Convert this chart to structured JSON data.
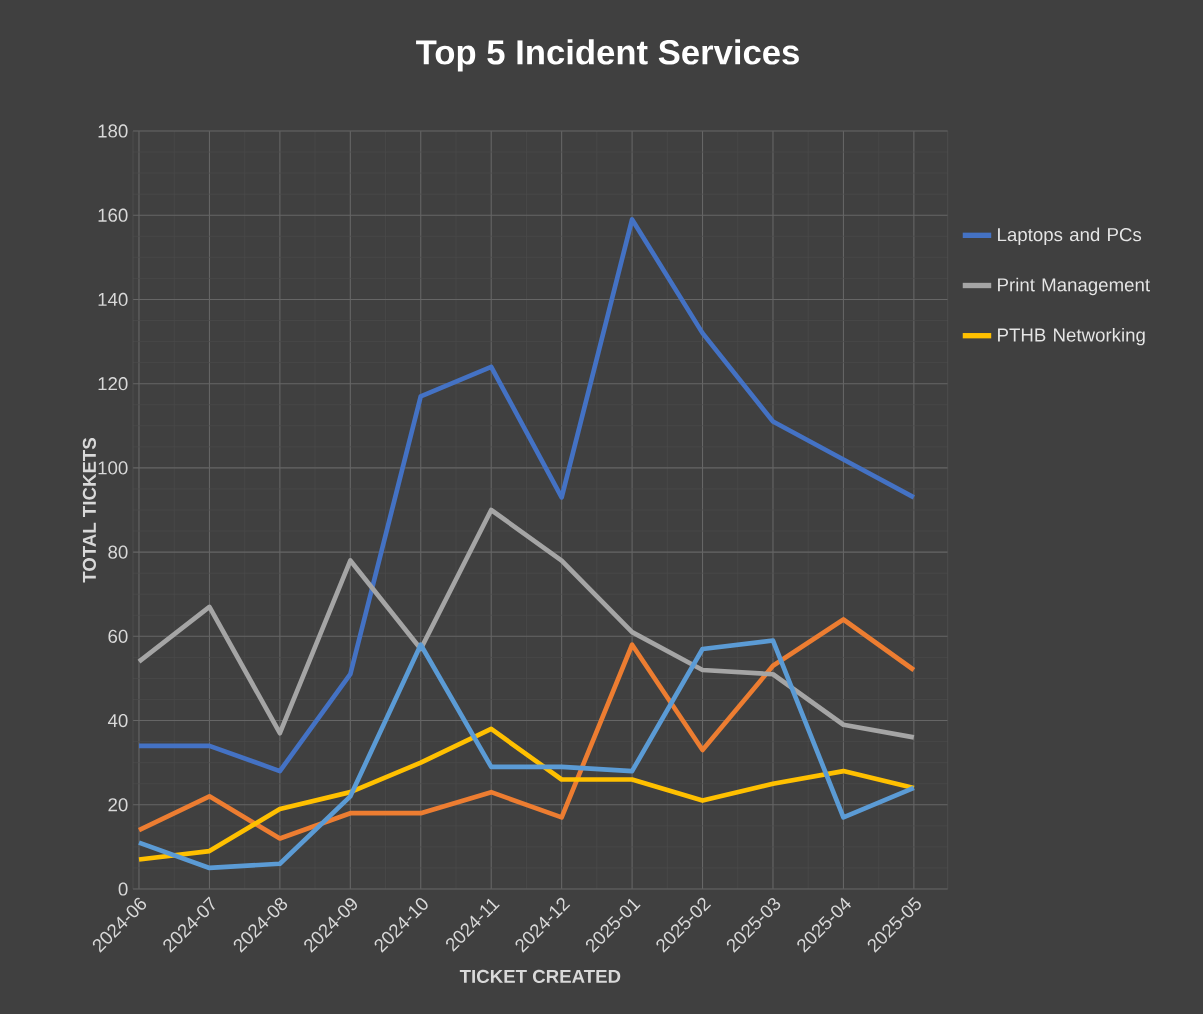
{
  "chart_data": {
    "type": "line",
    "title": "Top 5 Incident Services",
    "xlabel": "TICKET CREATED",
    "ylabel": "TOTAL TICKETS",
    "categories": [
      "2024-06",
      "2024-07",
      "2024-08",
      "2024-09",
      "2024-10",
      "2024-11",
      "2024-12",
      "2025-01",
      "2025-02",
      "2025-03",
      "2025-04",
      "2025-05"
    ],
    "series": [
      {
        "name": "Laptops and PCs",
        "color": "#4472c4",
        "values": [
          34,
          34,
          28,
          51,
          117,
          124,
          93,
          159,
          132,
          111,
          102,
          93
        ]
      },
      {
        "color": "#ed7d31",
        "values": [
          14,
          22,
          12,
          18,
          18,
          23,
          17,
          58,
          33,
          53,
          64,
          52
        ]
      },
      {
        "name": "Print Management",
        "color": "#a5a5a5",
        "values": [
          54,
          67,
          37,
          78,
          57,
          90,
          78,
          61,
          52,
          51,
          39,
          36
        ]
      },
      {
        "name": "PTHB Networking",
        "color": "#ffc000",
        "values": [
          7,
          9,
          19,
          23,
          30,
          38,
          26,
          26,
          21,
          25,
          28,
          24
        ]
      },
      {
        "color": "#5b9bd5",
        "values": [
          11,
          5,
          6,
          22,
          58,
          29,
          29,
          28,
          57,
          59,
          17,
          24
        ]
      }
    ],
    "ylim": [
      0,
      180
    ],
    "yticks": [
      0,
      20,
      40,
      60,
      80,
      100,
      120,
      140,
      160,
      180
    ],
    "grid": true,
    "legend": "right"
  }
}
